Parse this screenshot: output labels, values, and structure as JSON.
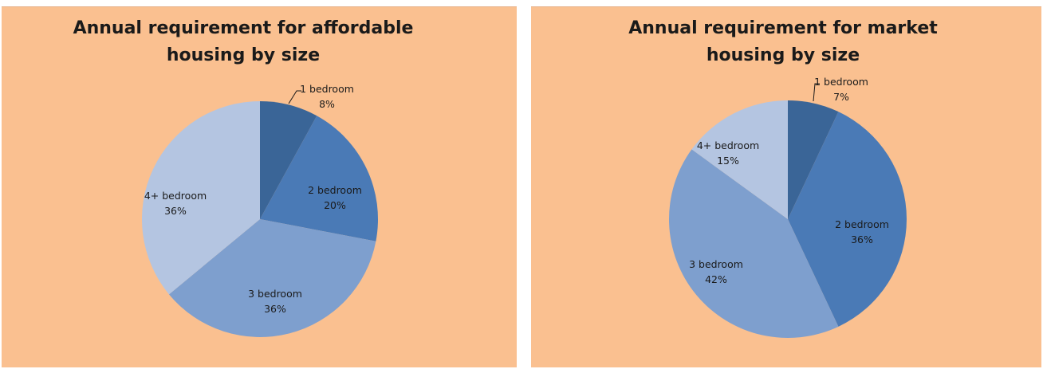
{
  "chart_data": [
    {
      "type": "pie",
      "title": "Annual requirement for affordable\nhousing by size",
      "categories": [
        "1 bedroom",
        "2 bedroom",
        "3 bedroom",
        "4+ bedroom"
      ],
      "values": [
        8,
        20,
        36,
        36
      ],
      "value_labels": [
        "8%",
        "20%",
        "36%",
        "36%"
      ],
      "colors": [
        "#3A6597",
        "#4A7AB6",
        "#7E9FCE",
        "#B4C5E1"
      ],
      "legend": "none"
    },
    {
      "type": "pie",
      "title": "Annual requirement for market\nhousing by size",
      "categories": [
        "1 bedroom",
        "2 bedroom",
        "3 bedroom",
        "4+ bedroom"
      ],
      "values": [
        7,
        36,
        42,
        15
      ],
      "value_labels": [
        "7%",
        "36%",
        "42%",
        "15%"
      ],
      "colors": [
        "#3A6597",
        "#4A7AB6",
        "#7E9FCE",
        "#B4C5E1"
      ],
      "legend": "none"
    }
  ]
}
